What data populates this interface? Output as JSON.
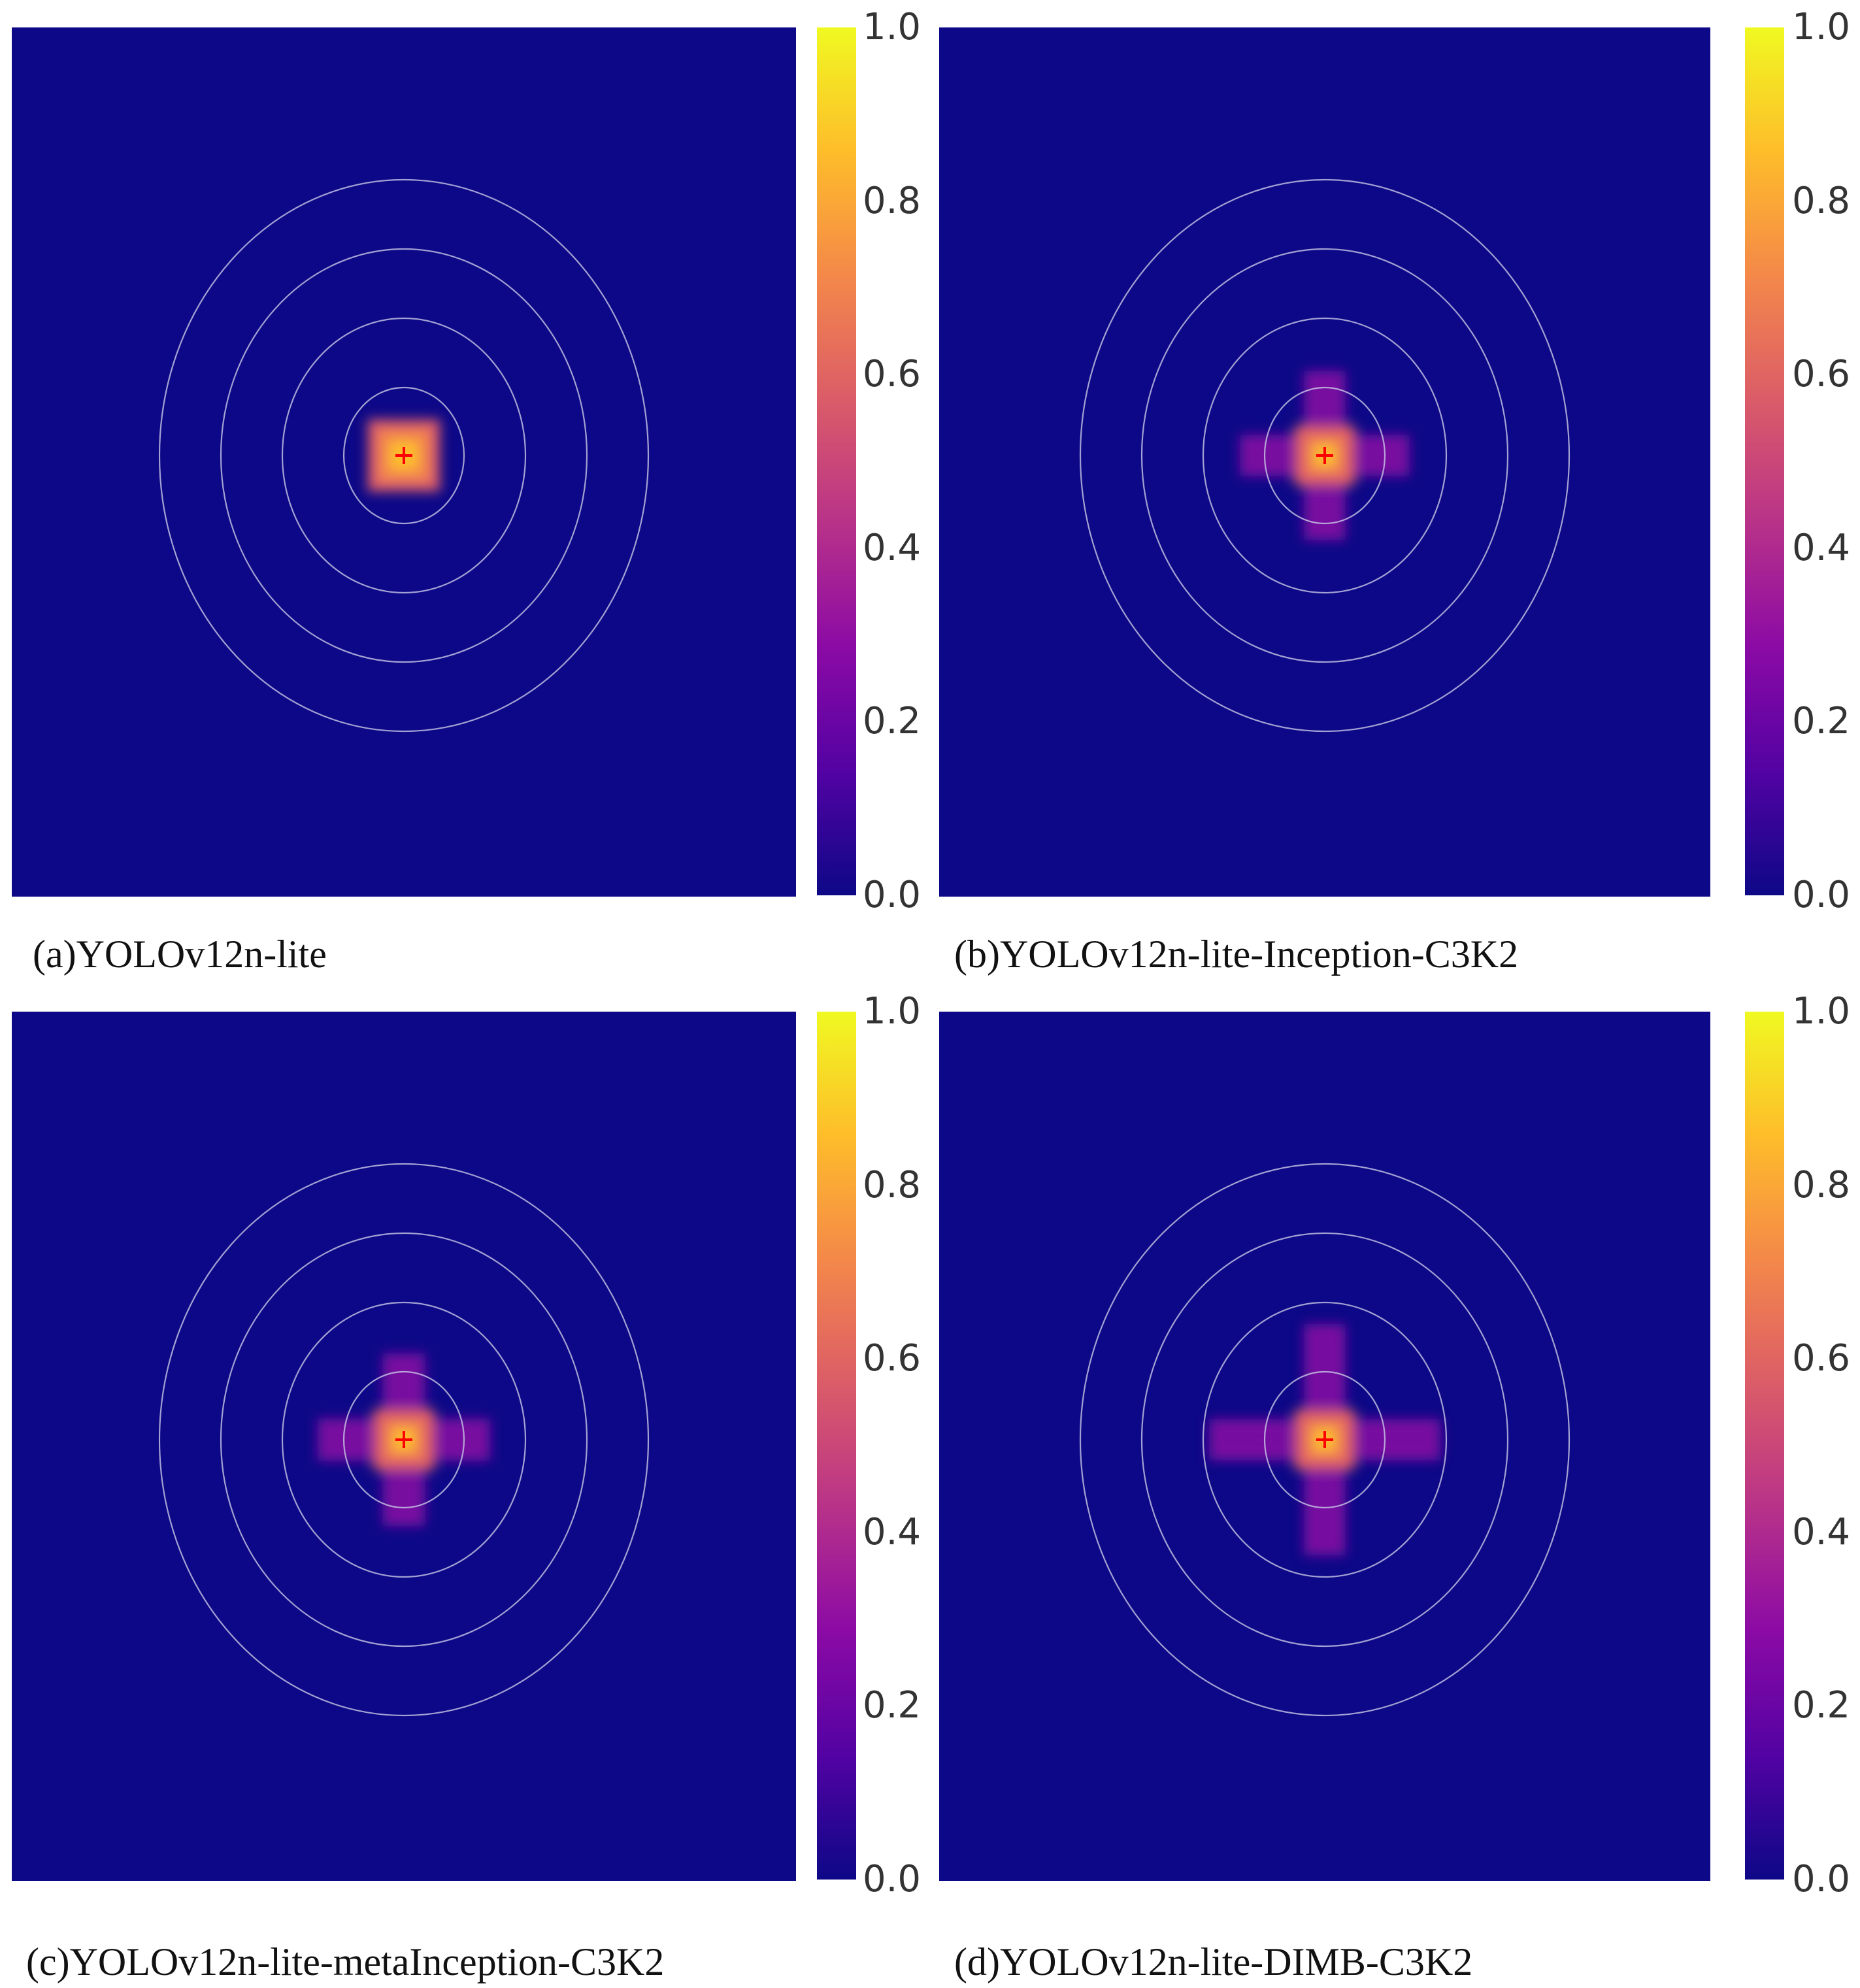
{
  "colors": {
    "background": "#0d0887",
    "ring": "#c8c8e6",
    "marker": "#ff0000",
    "colormap": [
      "#0d0887",
      "#5302a3",
      "#8b0aa5",
      "#b83289",
      "#db5c68",
      "#f48849",
      "#febd2a",
      "#f0f921"
    ]
  },
  "chart_data": [
    {
      "type": "heatmap",
      "title": "(a)YOLOv12n-lite",
      "caption": "(a)YOLOv12n-lite",
      "colorbar_ticks": [
        "1.0",
        "0.8",
        "0.6",
        "0.4",
        "0.2",
        "0.0"
      ],
      "value_range": [
        0,
        1
      ],
      "rings": 4,
      "pattern": "square",
      "peak_value": 1.0,
      "arm_length": 0.0,
      "core_half_width": 0.04,
      "center_marker": "+"
    },
    {
      "type": "heatmap",
      "title": "(b)YOLOv12n-lite-Inception-C3K2",
      "caption": "(b)YOLOv12n-lite-Inception-C3K2",
      "colorbar_ticks": [
        "1.0",
        "0.8",
        "0.6",
        "0.4",
        "0.2",
        "0.0"
      ],
      "value_range": [
        0,
        1
      ],
      "rings": 4,
      "pattern": "cross",
      "peak_value": 1.0,
      "arm_length": 0.08,
      "core_half_width": 0.03,
      "center_marker": "+"
    },
    {
      "type": "heatmap",
      "title": "(c)YOLOv12n-lite-metaInception-C3K2",
      "caption": "(c)YOLOv12n-lite-metaInception-C3K2",
      "colorbar_ticks": [
        "1.0",
        "0.8",
        "0.6",
        "0.4",
        "0.2",
        "0.0"
      ],
      "value_range": [
        0,
        1
      ],
      "rings": 4,
      "pattern": "cross",
      "peak_value": 1.0,
      "arm_length": 0.08,
      "core_half_width": 0.03,
      "center_marker": "+"
    },
    {
      "type": "heatmap",
      "title": "(d)YOLOv12n-lite-DIMB-C3K2",
      "caption": "(d)YOLOv12n-lite-DIMB-C3K2",
      "colorbar_ticks": [
        "1.0",
        "0.8",
        "0.6",
        "0.4",
        "0.2",
        "0.0"
      ],
      "value_range": [
        0,
        1
      ],
      "rings": 4,
      "pattern": "cross",
      "peak_value": 1.0,
      "arm_length": 0.12,
      "core_half_width": 0.03,
      "center_marker": "+"
    }
  ]
}
